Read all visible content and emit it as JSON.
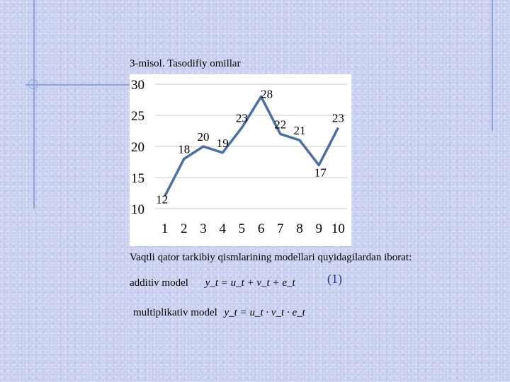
{
  "chart_data": {
    "type": "line",
    "title": "3-misol. Tasodifiy omillar",
    "x": [
      1,
      2,
      3,
      4,
      5,
      6,
      7,
      8,
      9,
      10
    ],
    "series": [
      {
        "values": [
          12,
          18,
          20,
          19,
          23,
          28,
          22,
          21,
          17,
          23
        ],
        "color": "#4a6fa5"
      }
    ],
    "ylim": [
      10,
      30
    ],
    "yticks": [
      10,
      15,
      20,
      25,
      30
    ],
    "grid": true,
    "legend": "none",
    "data_labels": true
  },
  "text": {
    "description": "Vaqtli qator tarkibiy qismlarining modellari quyidagilardan iborat:",
    "additive_label": "additiv model",
    "additive_formula": "y_t = u_t + v_t + e_t",
    "multiplicative_label": "multiplikativ model",
    "multiplicative_formula": "y_t = u_t · v_t · e_t",
    "equation_number": "(1)"
  }
}
